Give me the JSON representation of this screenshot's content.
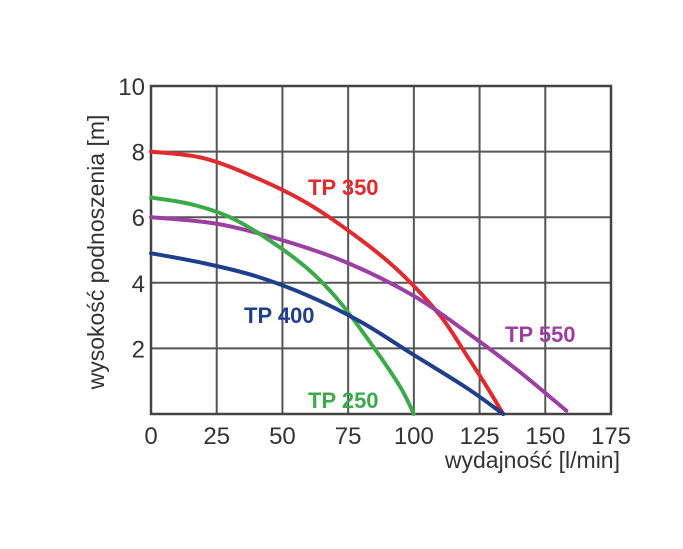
{
  "chart_data": {
    "type": "line",
    "title": "",
    "xlabel": "wydajność  [l/min]",
    "ylabel": "wysokość podnoszenia [m]",
    "xlim": [
      0,
      175
    ],
    "ylim": [
      0,
      10
    ],
    "xticks": [
      0,
      25,
      50,
      75,
      100,
      125,
      150,
      175
    ],
    "yticks": [
      2,
      4,
      6,
      8,
      10
    ],
    "grid": true,
    "series": [
      {
        "name": "TP 350",
        "color": "#e02a2e",
        "x": [
          0,
          20,
          40,
          60,
          80,
          95,
          110,
          120,
          128,
          134
        ],
        "y": [
          8.0,
          7.8,
          7.2,
          6.4,
          5.3,
          4.3,
          3.0,
          1.8,
          0.8,
          0.0
        ]
      },
      {
        "name": "TP 550",
        "color": "#9c3fa3",
        "x": [
          0,
          25,
          50,
          75,
          100,
          120,
          140,
          158
        ],
        "y": [
          6.0,
          5.8,
          5.3,
          4.6,
          3.6,
          2.5,
          1.3,
          0.1
        ]
      },
      {
        "name": "TP 250",
        "color": "#3daa4a",
        "x": [
          0,
          15,
          30,
          45,
          60,
          72,
          85,
          95,
          100
        ],
        "y": [
          6.6,
          6.4,
          6.0,
          5.3,
          4.4,
          3.4,
          2.0,
          0.8,
          0.0
        ]
      },
      {
        "name": "TP 400",
        "color": "#1f3f8c",
        "x": [
          0,
          20,
          40,
          60,
          80,
          100,
          120,
          134
        ],
        "y": [
          4.9,
          4.6,
          4.2,
          3.6,
          2.8,
          1.8,
          0.8,
          0.0
        ]
      }
    ]
  }
}
